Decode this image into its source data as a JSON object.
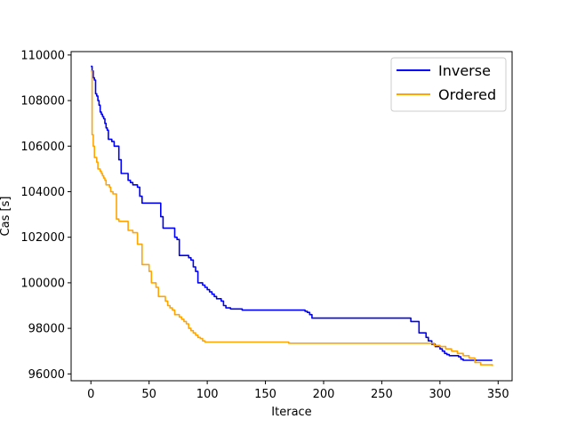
{
  "chart_data": {
    "type": "line",
    "title": "",
    "xlabel": "Iterace",
    "ylabel": "Čas [s]",
    "xlim": [
      -17,
      362
    ],
    "ylim": [
      95700,
      110150
    ],
    "xticks": [
      0,
      50,
      100,
      150,
      200,
      250,
      300,
      350
    ],
    "yticks": [
      96000,
      98000,
      100000,
      102000,
      104000,
      106000,
      108000,
      110000
    ],
    "grid": false,
    "legend_position": "top-right",
    "series": [
      {
        "name": "Inverse",
        "color": "#0000ff",
        "x": [
          0,
          1,
          2,
          3,
          4,
          5,
          6,
          7,
          8,
          9,
          10,
          11,
          12,
          13,
          14,
          15,
          16,
          18,
          20,
          22,
          24,
          26,
          28,
          30,
          32,
          34,
          36,
          38,
          40,
          42,
          44,
          46,
          48,
          50,
          52,
          54,
          56,
          58,
          60,
          62,
          64,
          66,
          68,
          70,
          72,
          74,
          76,
          78,
          80,
          82,
          84,
          86,
          88,
          90,
          92,
          94,
          96,
          98,
          100,
          102,
          104,
          106,
          108,
          110,
          112,
          114,
          116,
          118,
          120,
          130,
          140,
          150,
          160,
          170,
          180,
          184,
          186,
          188,
          190,
          195,
          200,
          210,
          220,
          230,
          240,
          250,
          260,
          270,
          275,
          280,
          282,
          285,
          288,
          290,
          293,
          296,
          300,
          302,
          304,
          306,
          308,
          310,
          312,
          314,
          316,
          318,
          320,
          322,
          324,
          326,
          328,
          330,
          335,
          340,
          345
        ],
        "y": [
          109500,
          109300,
          109000,
          108900,
          108300,
          108200,
          108000,
          107800,
          107500,
          107400,
          107300,
          107200,
          107000,
          106800,
          106700,
          106300,
          106300,
          106200,
          106000,
          106000,
          105400,
          104800,
          104800,
          104800,
          104500,
          104400,
          104300,
          104300,
          104200,
          103800,
          103500,
          103500,
          103500,
          103500,
          103500,
          103500,
          103500,
          103500,
          102900,
          102400,
          102400,
          102400,
          102400,
          102400,
          102000,
          101900,
          101200,
          101200,
          101200,
          101200,
          101100,
          101000,
          100700,
          100500,
          100000,
          100000,
          99900,
          99800,
          99700,
          99600,
          99500,
          99400,
          99300,
          99300,
          99200,
          99000,
          98900,
          98900,
          98850,
          98800,
          98800,
          98800,
          98800,
          98800,
          98800,
          98750,
          98700,
          98600,
          98450,
          98450,
          98450,
          98450,
          98450,
          98450,
          98450,
          98450,
          98450,
          98450,
          98300,
          98300,
          97800,
          97800,
          97600,
          97450,
          97300,
          97200,
          97100,
          97000,
          96900,
          96850,
          96800,
          96800,
          96800,
          96800,
          96750,
          96650,
          96600,
          96600,
          96600,
          96600,
          96600,
          96600,
          96600,
          96600,
          96600
        ]
      },
      {
        "name": "Ordered",
        "color": "#ffa500",
        "x": [
          0,
          1,
          2,
          3,
          4,
          5,
          6,
          7,
          8,
          9,
          10,
          11,
          12,
          13,
          14,
          15,
          16,
          17,
          18,
          19,
          20,
          21,
          22,
          23,
          24,
          25,
          26,
          28,
          30,
          32,
          34,
          36,
          38,
          40,
          42,
          44,
          46,
          48,
          50,
          52,
          54,
          56,
          58,
          60,
          62,
          64,
          66,
          68,
          70,
          72,
          74,
          76,
          78,
          80,
          82,
          84,
          86,
          88,
          90,
          92,
          94,
          96,
          98,
          100,
          102,
          104,
          106,
          110,
          120,
          130,
          140,
          150,
          160,
          170,
          180,
          190,
          200,
          220,
          240,
          260,
          280,
          290,
          295,
          300,
          305,
          310,
          315,
          320,
          325,
          330,
          335,
          340,
          345
        ],
        "y": [
          109300,
          106500,
          106000,
          105500,
          105500,
          105300,
          105000,
          105000,
          104900,
          104800,
          104700,
          104600,
          104500,
          104300,
          104300,
          104300,
          104200,
          104000,
          104000,
          103900,
          103900,
          103900,
          102800,
          102800,
          102700,
          102700,
          102700,
          102700,
          102700,
          102300,
          102300,
          102200,
          102200,
          101700,
          101700,
          100800,
          100800,
          100800,
          100500,
          100000,
          100000,
          99800,
          99400,
          99400,
          99400,
          99200,
          99000,
          98900,
          98800,
          98600,
          98600,
          98500,
          98400,
          98300,
          98200,
          98000,
          97900,
          97800,
          97700,
          97600,
          97550,
          97450,
          97400,
          97400,
          97400,
          97400,
          97400,
          97400,
          97400,
          97400,
          97400,
          97400,
          97400,
          97350,
          97350,
          97350,
          97350,
          97350,
          97350,
          97350,
          97350,
          97350,
          97250,
          97200,
          97100,
          97000,
          96900,
          96800,
          96700,
          96500,
          96400,
          96400,
          96350
        ]
      }
    ]
  }
}
